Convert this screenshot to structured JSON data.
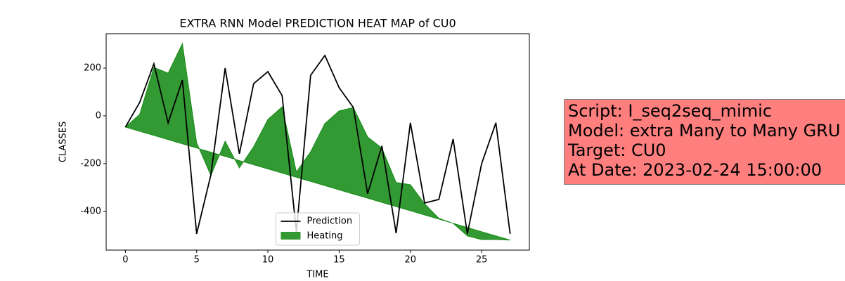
{
  "chart_data": {
    "type": "line",
    "title": "EXTRA RNN Model PREDICTION HEAT MAP of CU0",
    "xlabel": "TIME",
    "ylabel": "CLASSES",
    "x": [
      0,
      1,
      2,
      3,
      4,
      5,
      6,
      7,
      8,
      9,
      10,
      11,
      12,
      13,
      14,
      15,
      16,
      17,
      18,
      19,
      20,
      21,
      22,
      23,
      24,
      25,
      26,
      27
    ],
    "series": [
      {
        "name": "Prediction",
        "kind": "line",
        "color": "#000000",
        "values": [
          -47,
          56,
          218,
          -29,
          150,
          -494,
          -247,
          200,
          -159,
          135,
          185,
          85,
          -485,
          170,
          253,
          118,
          35,
          -326,
          -126,
          -491,
          -29,
          -365,
          -350,
          -97,
          -494,
          -200,
          -29,
          -494
        ]
      },
      {
        "name": "Heating",
        "kind": "area",
        "color": "#008000",
        "values": [
          -47,
          6,
          203,
          179,
          303,
          -112,
          -250,
          -106,
          -218,
          -129,
          -15,
          38,
          -235,
          -150,
          -32,
          21,
          35,
          -88,
          -135,
          -279,
          -288,
          -368,
          -429,
          -450,
          -503,
          -518,
          -518,
          -520
        ],
        "base": [
          -47,
          -64.5,
          -82,
          -99.6,
          -117.1,
          -134.6,
          -152.1,
          -169.6,
          -187.1,
          -204.7,
          -222.2,
          -239.7,
          -257.2,
          -274.7,
          -292.3,
          -309.8,
          -327.3,
          -344.8,
          -362.3,
          -379.9,
          -397.4,
          -414.9,
          -432.4,
          -449.9,
          -467.4,
          -485,
          -502.5,
          -520
        ]
      }
    ],
    "xlim": [
      -1.35,
      28.35
    ],
    "xticks": [
      0,
      5,
      10,
      15,
      20,
      25
    ],
    "ylim": [
      -562,
      344
    ],
    "yticks": [
      -400,
      -200,
      0,
      200
    ],
    "legend": "lower center",
    "annotation": {
      "lines": [
        "Script: I_seq2seq_mimic",
        "Model: extra Many to Many GRU",
        "Target: CU0",
        "At Date: 2023-02-24 15:00:00"
      ],
      "color": "#ff7f7f"
    }
  }
}
